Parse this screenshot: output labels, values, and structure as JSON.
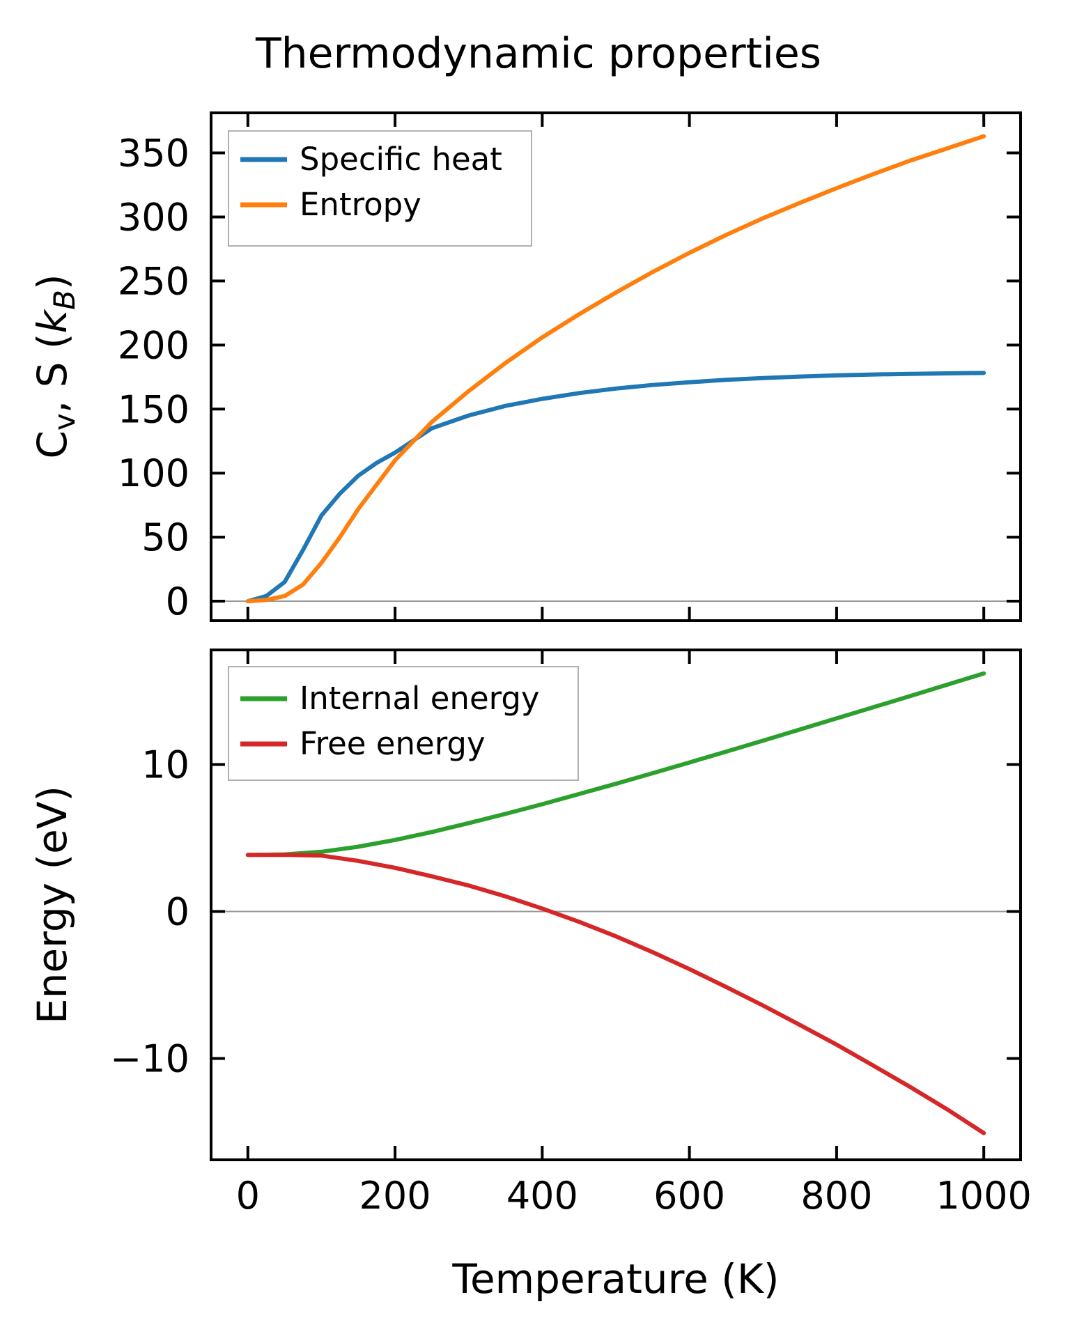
{
  "figure": {
    "title": "Thermodynamic properties",
    "xlabel": "Temperature (K)",
    "background": "#ffffff",
    "top_ylabel": {
      "c": "C",
      "v_sub": "v",
      "mid": ", S (",
      "k": "k",
      "b_sub": "B",
      "close": ")"
    },
    "colors": {
      "spine": "#000000",
      "zero_line": "#999999",
      "legend_border": "#b0b0b0",
      "specific_heat": "#1f77b4",
      "entropy": "#ff7f0e",
      "internal_energy": "#2ca02c",
      "free_energy": "#d62728"
    }
  },
  "chart_data": [
    {
      "type": "line",
      "title": "Thermodynamic properties",
      "xlabel": "",
      "ylabel": "Cv, S (kB)",
      "xlim": [
        -50,
        1050
      ],
      "ylim": [
        -15.2,
        381.3
      ],
      "xticks": [
        0,
        200,
        400,
        600,
        800,
        1000
      ],
      "yticks": [
        0,
        50,
        100,
        150,
        200,
        250,
        300,
        350
      ],
      "grid": false,
      "zero_line": true,
      "legend_position": "upper left",
      "x": [
        0,
        25,
        50,
        75,
        100,
        125,
        150,
        175,
        200,
        250,
        300,
        350,
        400,
        450,
        500,
        550,
        600,
        650,
        700,
        750,
        800,
        850,
        900,
        950,
        1000
      ],
      "series": [
        {
          "name": "Specific heat",
          "color": "#1f77b4",
          "values": [
            0,
            4,
            15,
            40,
            67,
            84,
            98,
            108,
            116,
            135,
            145,
            152.5,
            158,
            162.5,
            166,
            168.8,
            171,
            172.8,
            174.2,
            175.4,
            176.3,
            177,
            177.5,
            177.9,
            178.2
          ]
        },
        {
          "name": "Entropy",
          "color": "#ff7f0e",
          "values": [
            0,
            1,
            4,
            13,
            30,
            50,
            72,
            91,
            110,
            140,
            164,
            186,
            206,
            224,
            241,
            257,
            272,
            286,
            299,
            311,
            322.5,
            333.5,
            344,
            353.5,
            363
          ]
        }
      ]
    },
    {
      "type": "line",
      "title": "",
      "xlabel": "Temperature (K)",
      "ylabel": "Energy (eV)",
      "xlim": [
        -50,
        1050
      ],
      "ylim": [
        -16.9,
        17.8
      ],
      "xticks": [
        0,
        200,
        400,
        600,
        800,
        1000
      ],
      "yticks": [
        -10,
        0,
        10
      ],
      "grid": false,
      "zero_line": true,
      "legend_position": "upper left",
      "x": [
        0,
        50,
        100,
        150,
        200,
        250,
        300,
        350,
        400,
        450,
        500,
        550,
        600,
        650,
        700,
        750,
        800,
        850,
        900,
        950,
        1000
      ],
      "series": [
        {
          "name": "Internal energy",
          "color": "#2ca02c",
          "values": [
            3.85,
            3.88,
            4.06,
            4.41,
            4.87,
            5.41,
            6.01,
            6.64,
            7.3,
            7.99,
            8.69,
            9.41,
            10.14,
            10.88,
            11.63,
            12.38,
            13.14,
            13.9,
            14.66,
            15.43,
            16.2
          ]
        },
        {
          "name": "Free energy",
          "color": "#d62728",
          "values": [
            3.85,
            3.86,
            3.8,
            3.44,
            2.97,
            2.39,
            1.77,
            1.03,
            0.2,
            -0.7,
            -1.69,
            -2.77,
            -3.92,
            -5.14,
            -6.4,
            -7.72,
            -9.06,
            -10.49,
            -11.94,
            -13.46,
            -15.08
          ]
        }
      ]
    }
  ]
}
